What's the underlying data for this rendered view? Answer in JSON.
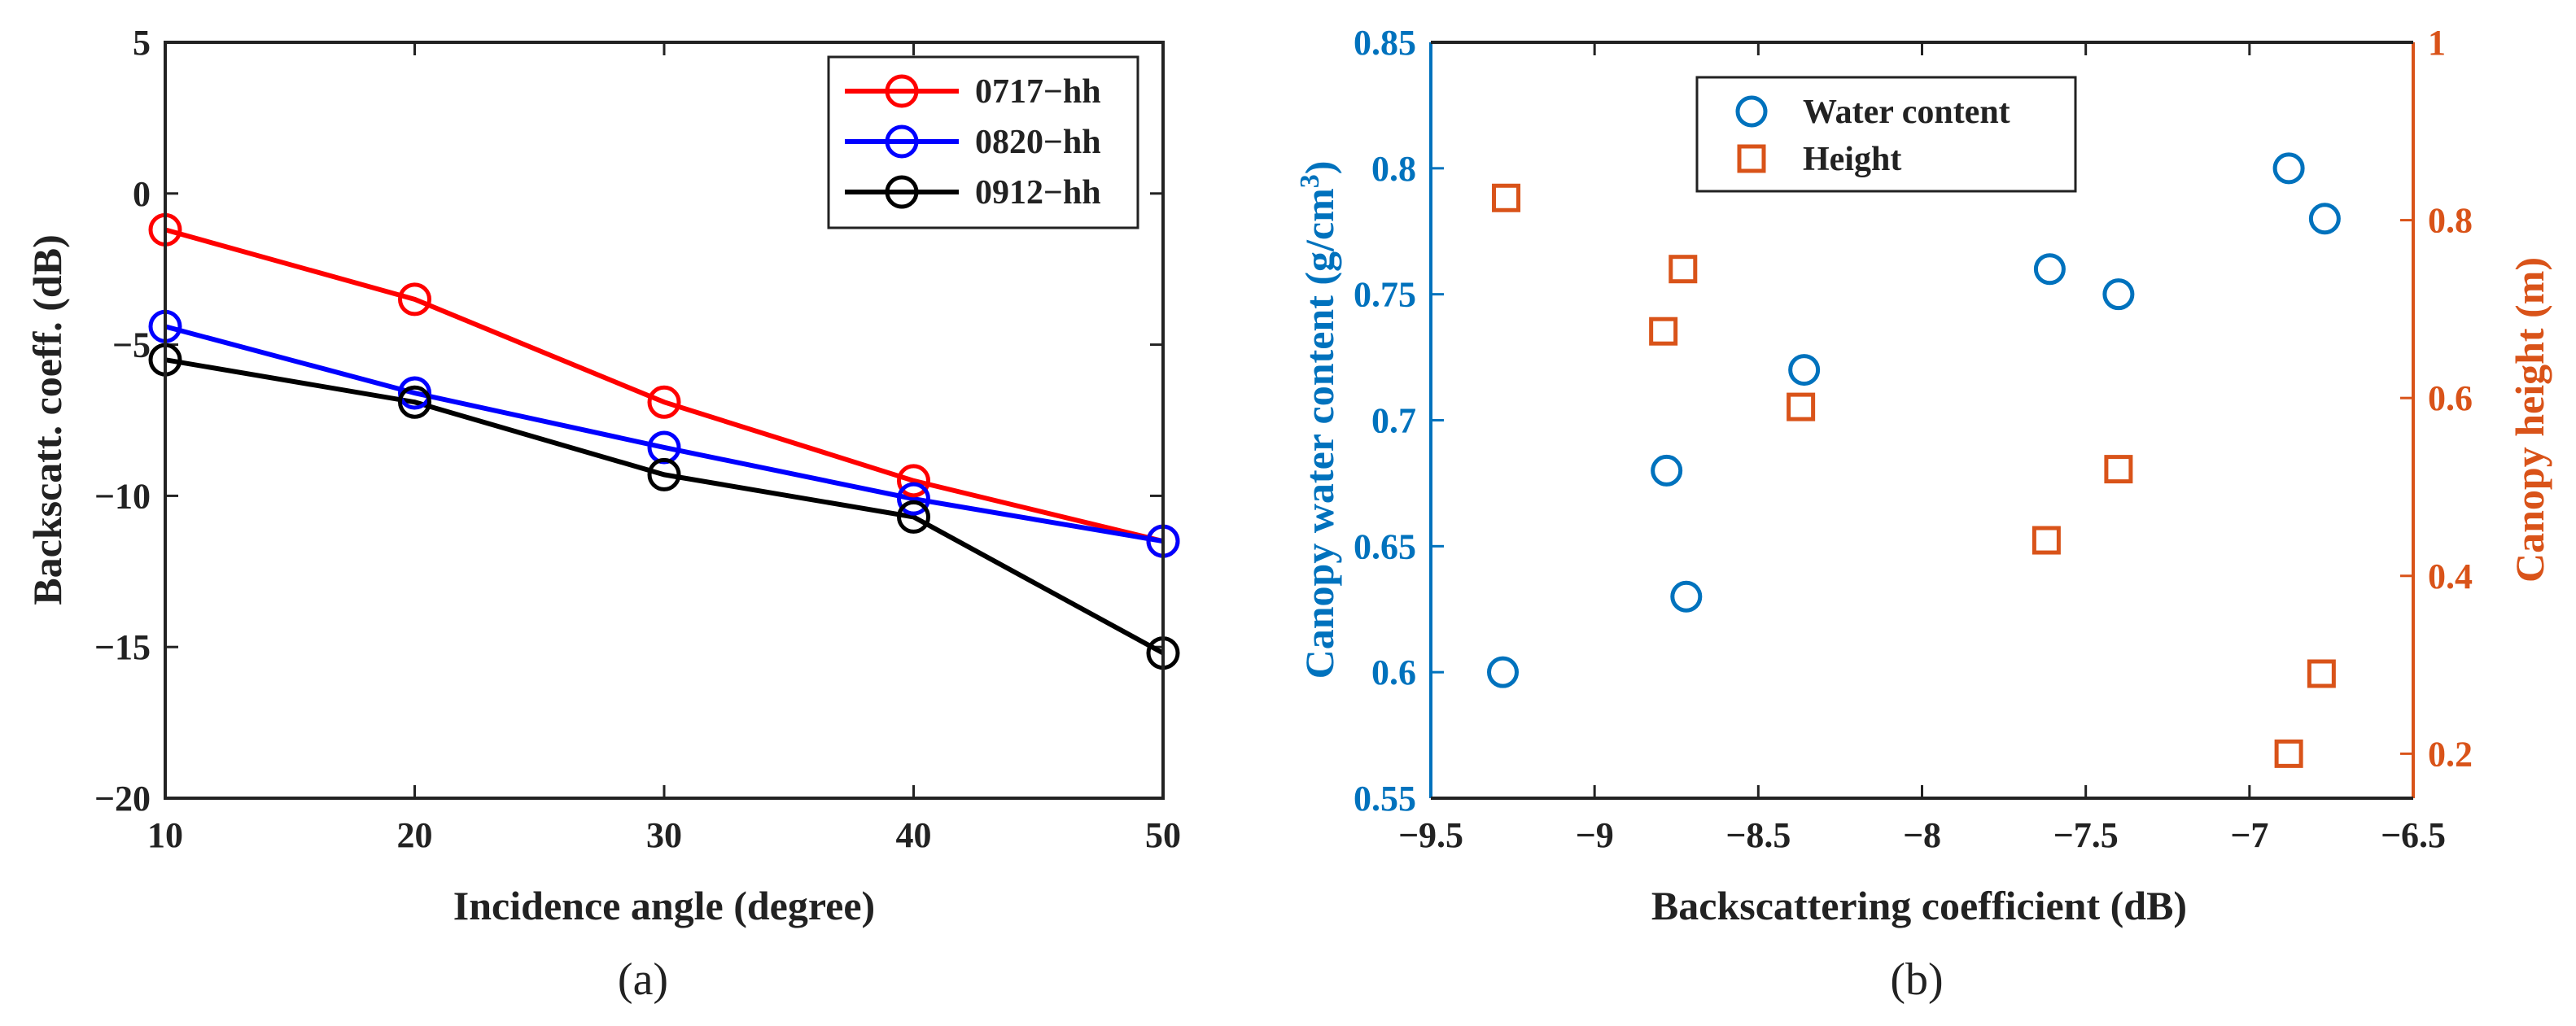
{
  "chart_data": [
    {
      "type": "line",
      "panel_label": "(a)",
      "xlabel": "Incidence angle (degree)",
      "ylabel": "Backscatt. coeff. (dB)",
      "xlim": [
        10,
        50
      ],
      "ylim": [
        -20,
        5
      ],
      "xticks": [
        "10",
        "20",
        "30",
        "40",
        "50"
      ],
      "yticks": [
        "5",
        "0",
        "−5",
        "−10",
        "−15",
        "−20"
      ],
      "x": [
        10,
        20,
        30,
        40,
        50
      ],
      "legend_position": "top-right",
      "series": [
        {
          "name": "0717−hh",
          "color": "#ff0000",
          "values": [
            -1.2,
            -3.5,
            -6.9,
            -9.5,
            -11.5
          ]
        },
        {
          "name": "0820−hh",
          "color": "#0000ff",
          "values": [
            -4.4,
            -6.6,
            -8.4,
            -10.1,
            -11.5
          ]
        },
        {
          "name": "0912−hh",
          "color": "#000000",
          "values": [
            -5.5,
            -6.9,
            -9.3,
            -10.7,
            -15.2
          ]
        }
      ]
    },
    {
      "type": "scatter",
      "panel_label": "(b)",
      "xlabel": "Backscattering coefficient (dB)",
      "ylabel_left": "Canopy water content (g/cm",
      "ylabel_left_sup": "3",
      "ylabel_left_end": ")",
      "ylabel_right": "Canopy height (m)",
      "xlim": [
        -9.5,
        -6.5
      ],
      "ylim_left": [
        0.55,
        0.85
      ],
      "ylim_right": [
        0.15,
        1.0
      ],
      "xticks": [
        "−9.5",
        "−9",
        "−8.5",
        "−8",
        "−7.5",
        "−7",
        "−6.5"
      ],
      "yticks_left": [
        "0.55",
        "0.6",
        "0.65",
        "0.7",
        "0.75",
        "0.8",
        "0.85"
      ],
      "yticks_right": [
        "0.2",
        "0.4",
        "0.6",
        "0.8",
        "1"
      ],
      "left_color": "#0072bd",
      "right_color": "#d95319",
      "legend_position": "top-center",
      "series": [
        {
          "name": "Water content",
          "marker": "circle",
          "axis": "left",
          "color": "#0072bd",
          "points": [
            [
              -9.28,
              0.6
            ],
            [
              -8.78,
              0.68
            ],
            [
              -8.72,
              0.63
            ],
            [
              -8.36,
              0.72
            ],
            [
              -7.61,
              0.76
            ],
            [
              -7.4,
              0.75
            ],
            [
              -6.88,
              0.8
            ],
            [
              -6.77,
              0.78
            ]
          ]
        },
        {
          "name": "Height",
          "marker": "square",
          "axis": "right",
          "color": "#d95319",
          "points": [
            [
              -9.27,
              0.825
            ],
            [
              -8.79,
              0.675
            ],
            [
              -8.73,
              0.745
            ],
            [
              -8.37,
              0.59
            ],
            [
              -7.62,
              0.44
            ],
            [
              -7.4,
              0.52
            ],
            [
              -6.88,
              0.2
            ],
            [
              -6.78,
              0.29
            ]
          ]
        }
      ]
    }
  ]
}
